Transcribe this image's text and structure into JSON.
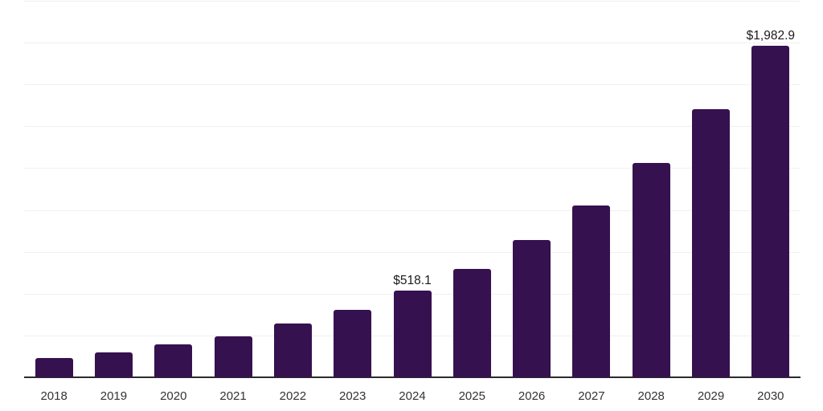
{
  "chart_data": {
    "type": "bar",
    "title": "",
    "xlabel": "",
    "ylabel": "",
    "categories": [
      "2018",
      "2019",
      "2020",
      "2021",
      "2022",
      "2023",
      "2024",
      "2025",
      "2026",
      "2027",
      "2028",
      "2029",
      "2030"
    ],
    "values": [
      115,
      150,
      195,
      245,
      320,
      405,
      518.1,
      650,
      820,
      1025,
      1280,
      1600,
      1982.9
    ],
    "data_labels": [
      "",
      "",
      "",
      "",
      "",
      "",
      "$518.1",
      "",
      "",
      "",
      "",
      "",
      "$1,982.9"
    ],
    "ylim": [
      0,
      2250
    ],
    "grid_step": 250,
    "grid": "horizontal-only",
    "legend": "none",
    "y_tick_labels_visible": false,
    "bar_color": "#36114F",
    "axis_line_color": "#2b2b2b",
    "gridline_color": "#f0f0f0",
    "value_label_color": "#1a1a1a",
    "tick_label_color": "#333333"
  }
}
